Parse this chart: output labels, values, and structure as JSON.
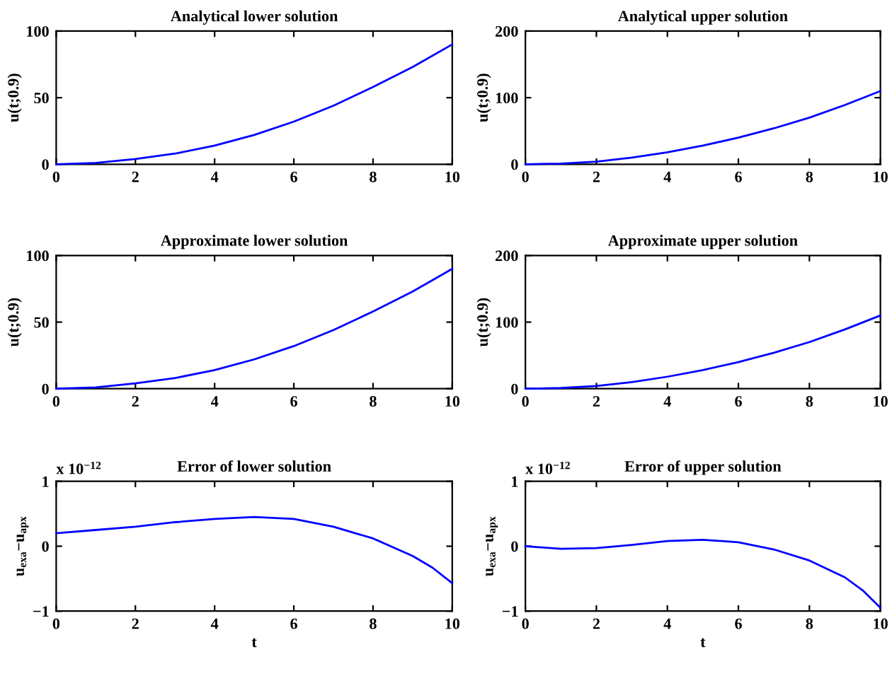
{
  "chart_data": [
    {
      "type": "line",
      "title": "Analytical lower solution",
      "ylabel": "u(t;0.9)",
      "xlim": [
        0,
        10
      ],
      "xticks": [
        0,
        2,
        4,
        6,
        8,
        10
      ],
      "ylim": [
        0,
        100
      ],
      "yticks": [
        0,
        50,
        100
      ],
      "tick_labels": true,
      "series": [
        {
          "color": "#0000ff",
          "x": [
            0,
            1,
            2,
            3,
            4,
            5,
            6,
            7,
            8,
            9,
            10
          ],
          "values": [
            0,
            1,
            4,
            8,
            14,
            22,
            32,
            44,
            58,
            73,
            90
          ]
        }
      ]
    },
    {
      "type": "line",
      "title": "Analytical upper solution",
      "ylabel": "u(t;0.9)",
      "xlim": [
        0,
        10
      ],
      "xticks": [
        0,
        2,
        4,
        6,
        8,
        10
      ],
      "ylim": [
        0,
        200
      ],
      "yticks": [
        0,
        100,
        200
      ],
      "series": [
        {
          "color": "#0000ff",
          "x": [
            0,
            1,
            2,
            3,
            4,
            5,
            6,
            7,
            8,
            9,
            10
          ],
          "values": [
            0,
            1,
            4,
            10,
            18,
            28,
            40,
            54,
            70,
            89,
            110
          ]
        }
      ]
    },
    {
      "type": "line",
      "title": "Approximate lower solution",
      "ylabel": "u(t;0.9)",
      "xlim": [
        0,
        10
      ],
      "xticks": [
        0,
        2,
        4,
        6,
        8,
        10
      ],
      "ylim": [
        0,
        100
      ],
      "yticks": [
        0,
        50,
        100
      ],
      "series": [
        {
          "color": "#0000ff",
          "x": [
            0,
            1,
            2,
            3,
            4,
            5,
            6,
            7,
            8,
            9,
            10
          ],
          "values": [
            0,
            1,
            4,
            8,
            14,
            22,
            32,
            44,
            58,
            73,
            90
          ]
        }
      ]
    },
    {
      "type": "line",
      "title": "Approximate upper solution",
      "ylabel": "u(t;0.9)",
      "xlim": [
        0,
        10
      ],
      "xticks": [
        0,
        2,
        4,
        6,
        8,
        10
      ],
      "ylim": [
        0,
        200
      ],
      "yticks": [
        0,
        100,
        200
      ],
      "series": [
        {
          "color": "#0000ff",
          "x": [
            0,
            1,
            2,
            3,
            4,
            5,
            6,
            7,
            8,
            9,
            10
          ],
          "values": [
            0,
            1,
            4,
            10,
            18,
            28,
            40,
            54,
            70,
            89,
            110
          ]
        }
      ]
    },
    {
      "type": "line",
      "title": "Error of lower solution",
      "xlabel": "t",
      "ylabel": "u$_{exa}$−u$_{apx}$",
      "annotations": [
        "x 10$^{−12}$"
      ],
      "xlim": [
        0,
        10
      ],
      "xticks": [
        0,
        2,
        4,
        6,
        8,
        10
      ],
      "ylim": [
        -1,
        1
      ],
      "yticks": [
        -1,
        0,
        1
      ],
      "series": [
        {
          "color": "#0000ff",
          "x": [
            0,
            1,
            2,
            3,
            4,
            5,
            6,
            7,
            8,
            9,
            9.5,
            10
          ],
          "values": [
            0.2,
            0.25,
            0.3,
            0.37,
            0.42,
            0.45,
            0.42,
            0.3,
            0.12,
            -0.15,
            -0.33,
            -0.57
          ]
        }
      ]
    },
    {
      "type": "line",
      "title": "Error of upper solution",
      "xlabel": "t",
      "ylabel": "u$_{exa}$−u$_{apx}$",
      "annotations": [
        "x 10$^{−12}$"
      ],
      "xlim": [
        0,
        10
      ],
      "xticks": [
        0,
        2,
        4,
        6,
        8,
        10
      ],
      "ylim": [
        -1,
        1
      ],
      "yticks": [
        -1,
        0,
        1
      ],
      "series": [
        {
          "color": "#0000ff",
          "x": [
            0,
            1,
            2,
            3,
            4,
            5,
            6,
            7,
            8,
            9,
            9.5,
            10
          ],
          "values": [
            0.0,
            -0.04,
            -0.03,
            0.02,
            0.08,
            0.1,
            0.06,
            -0.05,
            -0.22,
            -0.48,
            -0.68,
            -0.95
          ]
        }
      ]
    }
  ]
}
